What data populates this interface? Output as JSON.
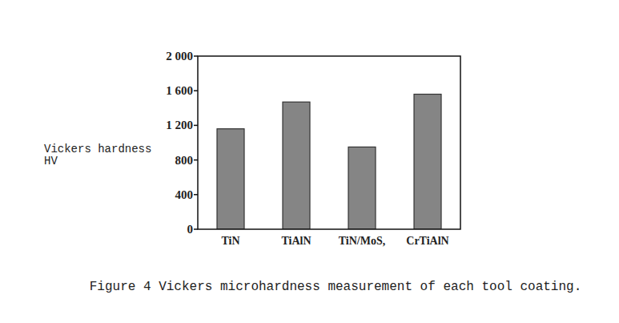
{
  "chart_data": {
    "type": "bar",
    "title": "Figure 4 Vickers microhardness measurement of each tool coating.",
    "y_label": "Vickers hardness\nHV",
    "categories": [
      "TiN",
      "TiAlN",
      "TiN/MoS,",
      "CrTiAlN"
    ],
    "values": [
      1160,
      1470,
      950,
      1560
    ],
    "color": "#858585",
    "ylim": [
      0,
      2000
    ],
    "yticks": [
      0,
      400,
      800,
      {
        "value": 1200,
        "label": "1 200"
      },
      {
        "value": 1600,
        "label": "1 600"
      },
      {
        "value": 2000,
        "label": "2 000"
      }
    ],
    "grid": false
  }
}
